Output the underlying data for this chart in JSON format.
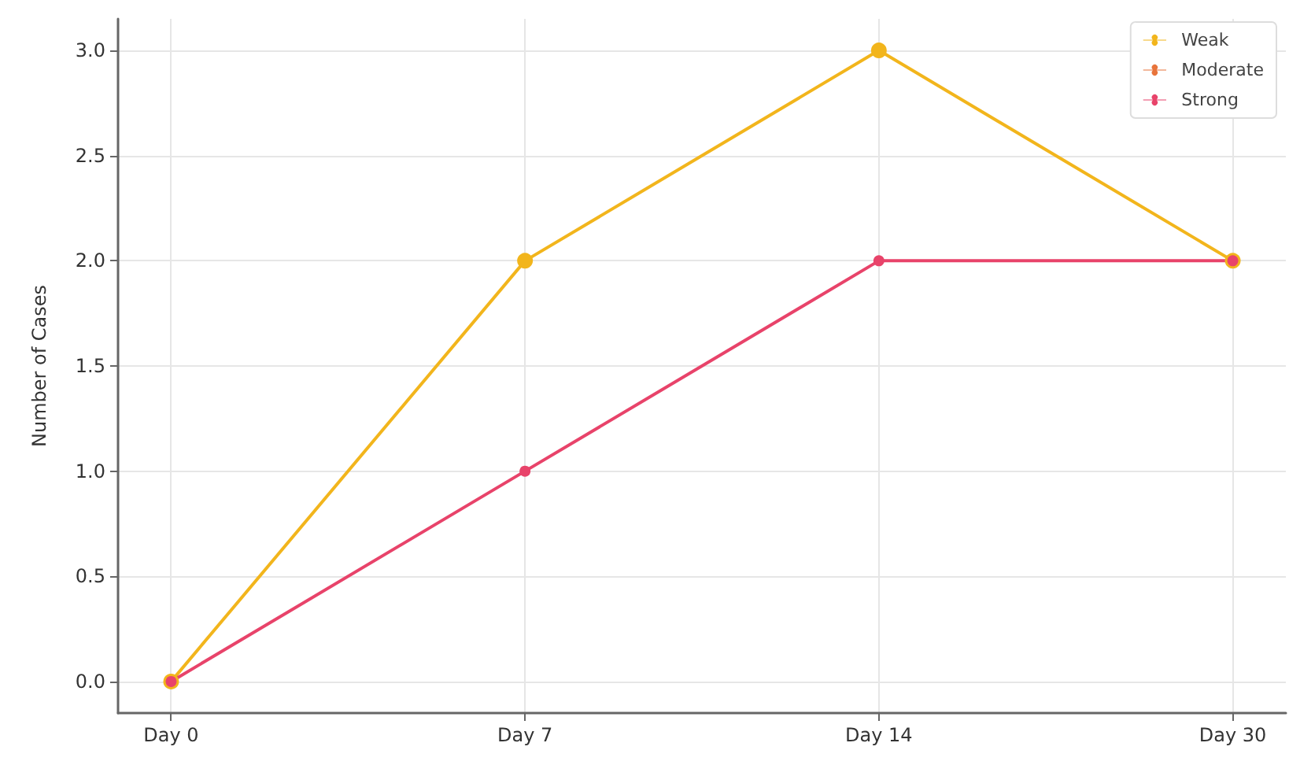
{
  "chart_data": {
    "type": "line",
    "ylabel": "Number of Cases",
    "categories": [
      "Day 0",
      "Day 7",
      "Day 14",
      "Day 30"
    ],
    "series": [
      {
        "name": "Weak",
        "color": "#f2b51c",
        "values": [
          0,
          2,
          3,
          2
        ]
      },
      {
        "name": "Moderate",
        "color": "#e8743b",
        "values": [
          null,
          null,
          null,
          null
        ]
      },
      {
        "name": "Strong",
        "color": "#e8436a",
        "values": [
          0,
          1,
          2,
          2
        ]
      }
    ],
    "ylim": [
      -0.15,
      3.15
    ],
    "yticks": [
      {
        "value": 0,
        "label": "0.0"
      },
      {
        "value": 0.5,
        "label": "0.5"
      },
      {
        "value": 1,
        "label": "1.0"
      },
      {
        "value": 1.5,
        "label": "1.5"
      },
      {
        "value": 2,
        "label": "2.0"
      },
      {
        "value": 2.5,
        "label": "2.5"
      },
      {
        "value": 3,
        "label": "3.0"
      }
    ],
    "grid": true,
    "legend": "top right",
    "marker": "circle",
    "line_style": "solid"
  }
}
